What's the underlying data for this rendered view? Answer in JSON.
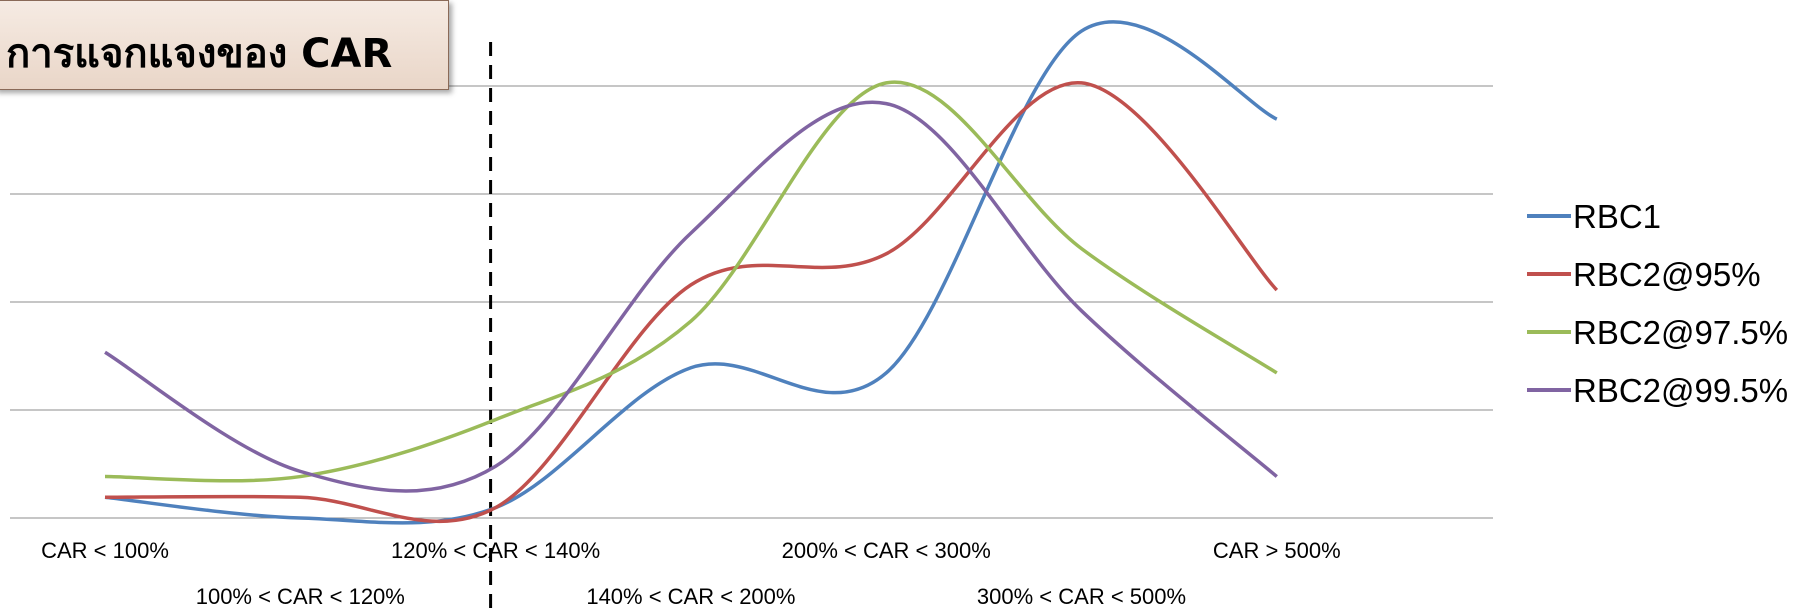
{
  "chart_data": {
    "type": "line",
    "title": "การแจกแจงของ CAR",
    "xlabel": "",
    "ylabel": "",
    "categories": [
      "CAR < 100%",
      "100% < CAR < 120%",
      "120% < CAR < 140%",
      "140% < CAR < 200%",
      "200% < CAR < 300%",
      "300% < CAR < 500%",
      "CAR > 500%"
    ],
    "ylim": [
      0,
      5
    ],
    "grid": true,
    "legend": "right",
    "series": [
      {
        "name": "RBC1",
        "color": "#4f81bd",
        "values": [
          0.2,
          0.0,
          0.1,
          1.45,
          1.4,
          4.7,
          3.85
        ]
      },
      {
        "name": "RBC2@95%",
        "color": "#c0504d",
        "values": [
          0.2,
          0.2,
          0.1,
          2.25,
          2.55,
          4.2,
          2.2
        ]
      },
      {
        "name": "RBC2@97.5%",
        "color": "#9bbb59",
        "values": [
          0.4,
          0.4,
          0.95,
          1.9,
          4.2,
          2.6,
          1.4
        ]
      },
      {
        "name": "RBC2@99.5%",
        "color": "#8064a2",
        "values": [
          1.6,
          0.45,
          0.5,
          2.75,
          4.0,
          2.0,
          0.4
        ]
      }
    ],
    "reference_line": {
      "style": "dashed",
      "at_category": "120% < CAR < 140%"
    }
  }
}
